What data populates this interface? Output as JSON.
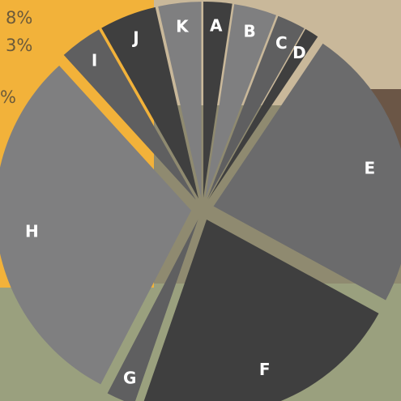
{
  "chart_data": {
    "type": "pie",
    "style": "exploded",
    "categories": [
      "A",
      "B",
      "C",
      "D",
      "E",
      "F",
      "G",
      "H",
      "I",
      "J",
      "K"
    ],
    "values": [
      2,
      3,
      2,
      1,
      20,
      19,
      2,
      26,
      3,
      4,
      3
    ],
    "colors": [
      "#3f3f3f",
      "#7f7f80",
      "#5f5f60",
      "#3f3f3f",
      "#6b6b6c",
      "#3f3f3f",
      "#5f5f60",
      "#7f7f80",
      "#5f5f60",
      "#3f3f3f",
      "#7f7f80"
    ],
    "title": "",
    "legend": "none"
  },
  "partial_background_text": [
    "8%",
    "3%",
    "%"
  ],
  "background": {
    "yellow": "#f2b23a",
    "beige": "#c9b89a",
    "green": "#9aa07e",
    "dark": "#6b5646"
  }
}
